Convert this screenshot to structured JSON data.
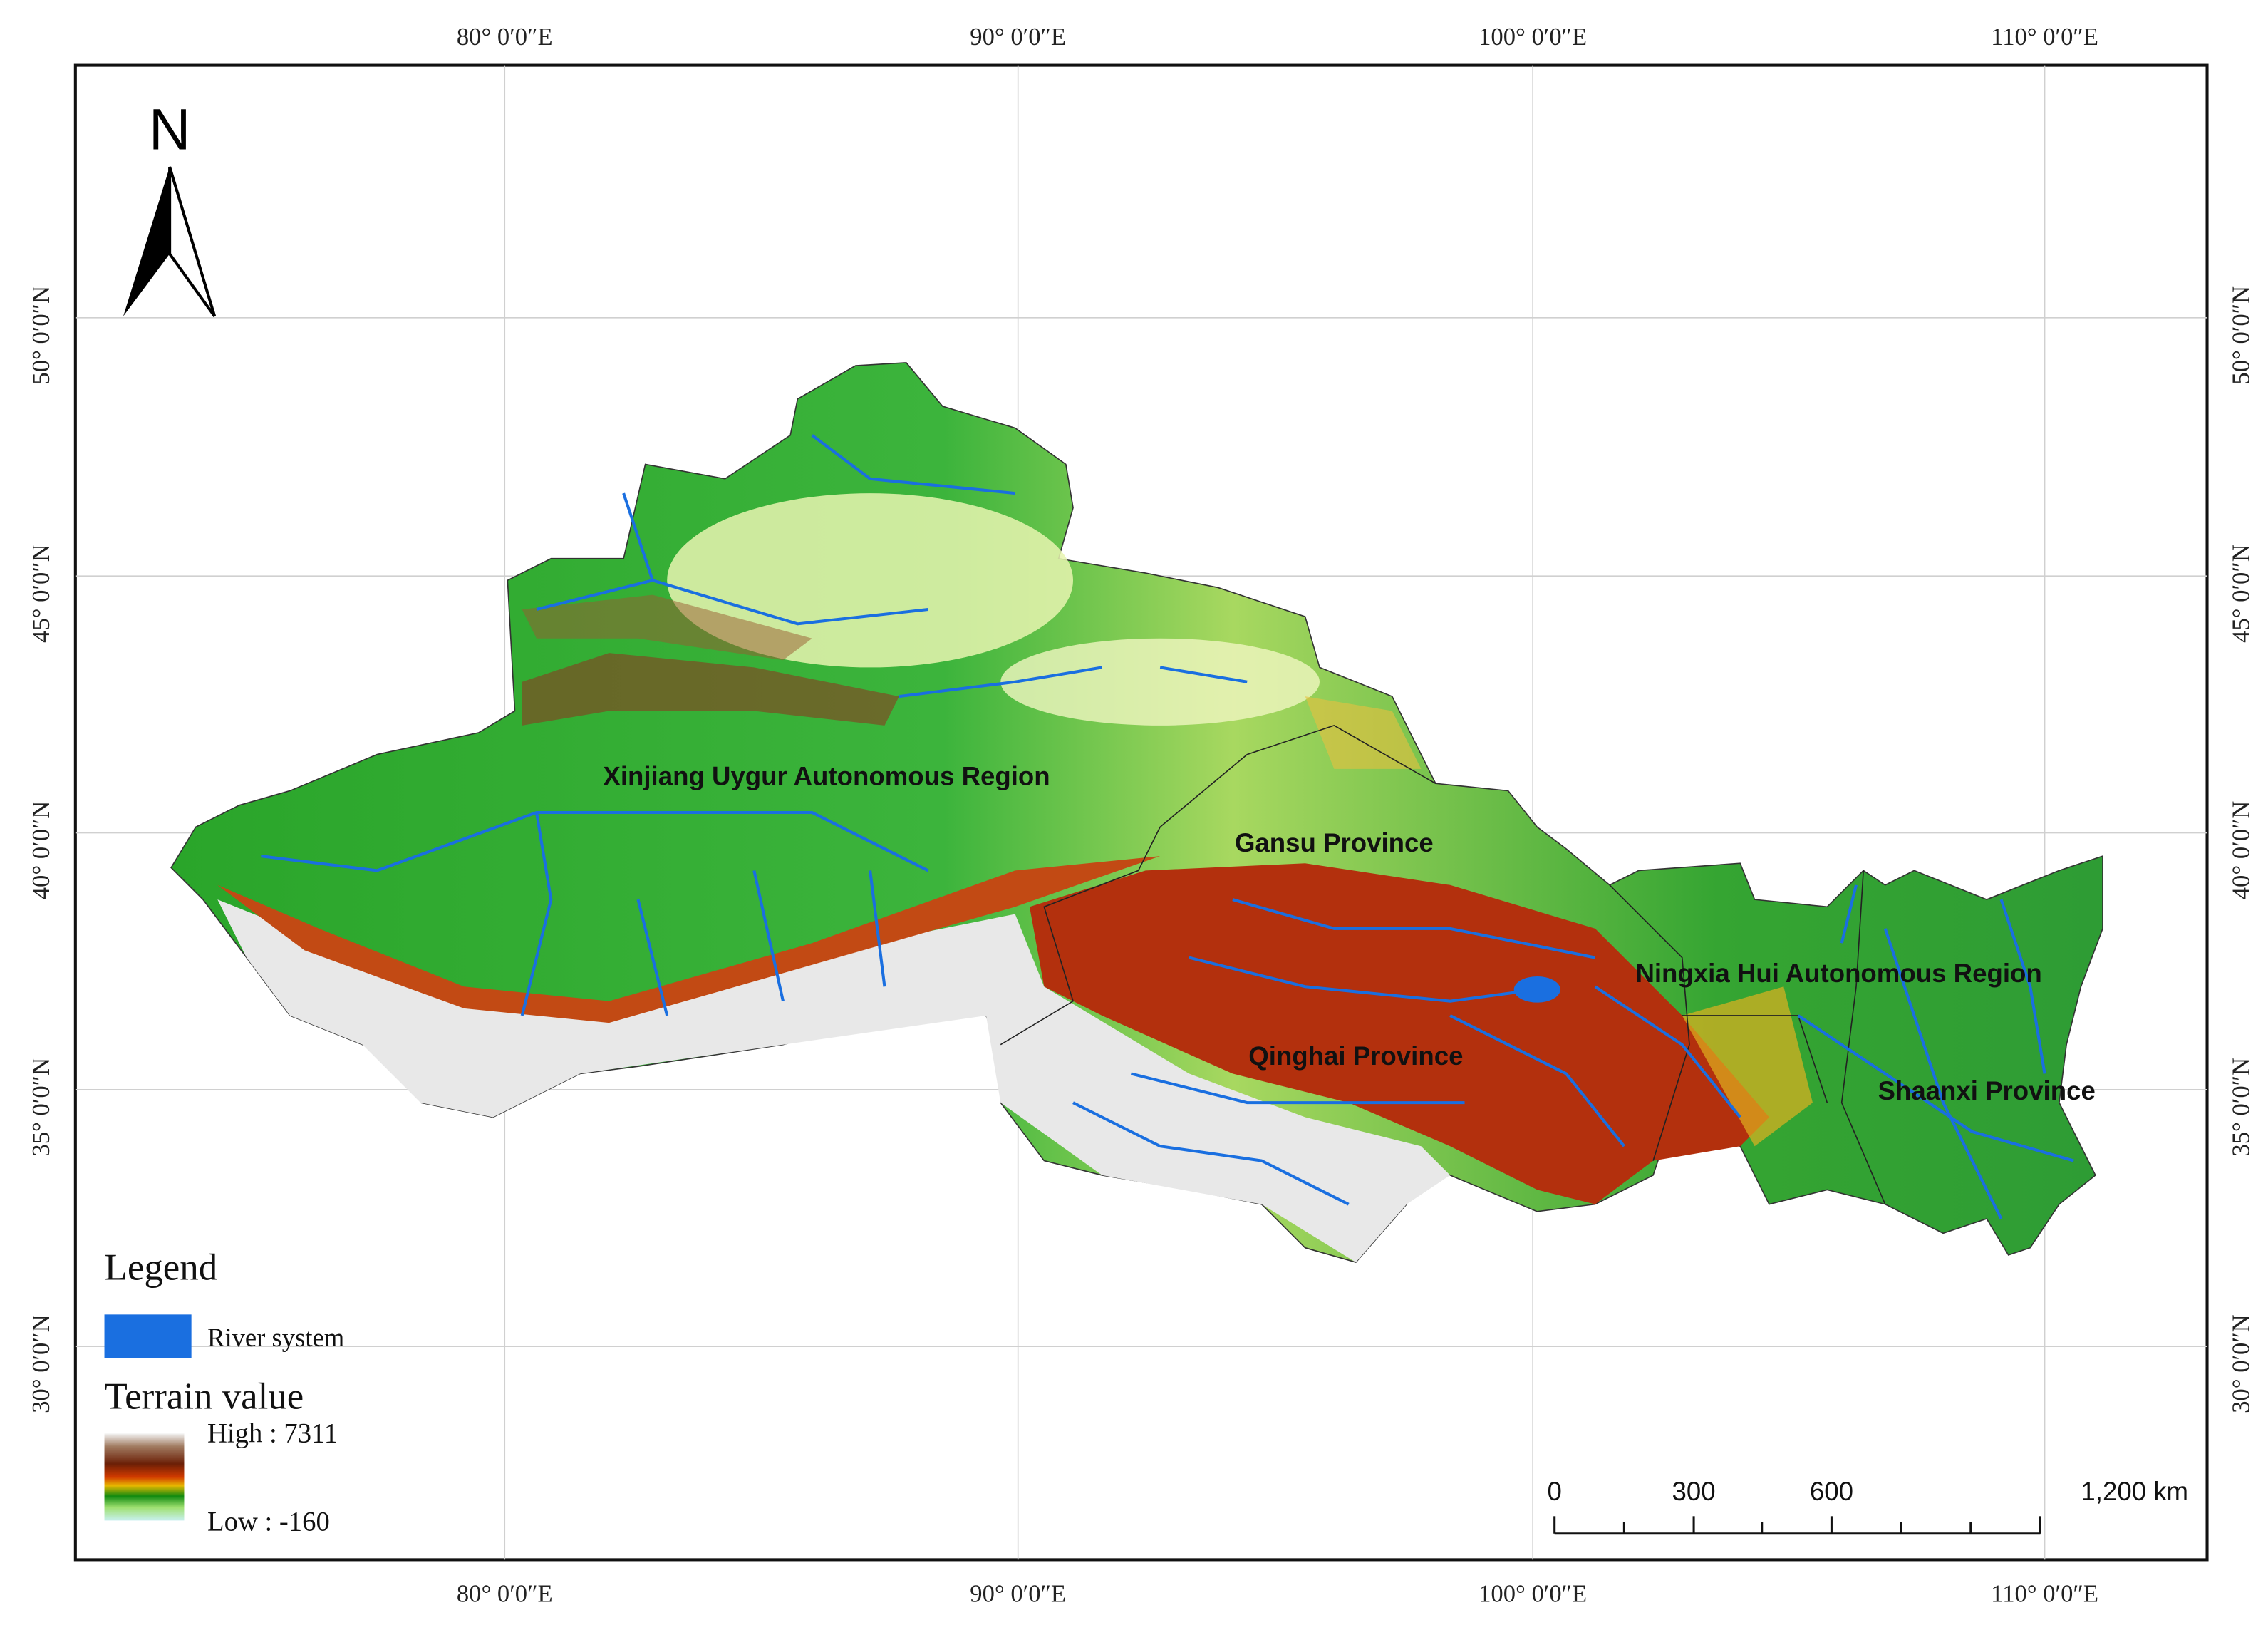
{
  "north_arrow": {
    "label": "N"
  },
  "graticule": {
    "longitude_labels": [
      "80° 0′0″E",
      "90° 0′0″E",
      "100° 0′0″E",
      "110° 0′0″E"
    ],
    "latitude_labels": [
      "50° 0′0″N",
      "45° 0′0″N",
      "40° 0′0″N",
      "35° 0′0″N",
      "30° 0′0″N"
    ]
  },
  "regions": [
    {
      "label": "Xinjiang Uygur Autonomous Region"
    },
    {
      "label": "Gansu Province"
    },
    {
      "label": "Qinghai Province"
    },
    {
      "label": "Ningxia Hui Autonomous Region"
    },
    {
      "label": "Shaanxi Province"
    }
  ],
  "legend": {
    "title": "Legend",
    "river_label": "River system",
    "terrain_title": "Terrain value",
    "high_label": "High : 7311",
    "low_label": "Low : -160"
  },
  "scale_bar": {
    "labels": [
      "0",
      "300",
      "600",
      "1,200 km"
    ]
  }
}
